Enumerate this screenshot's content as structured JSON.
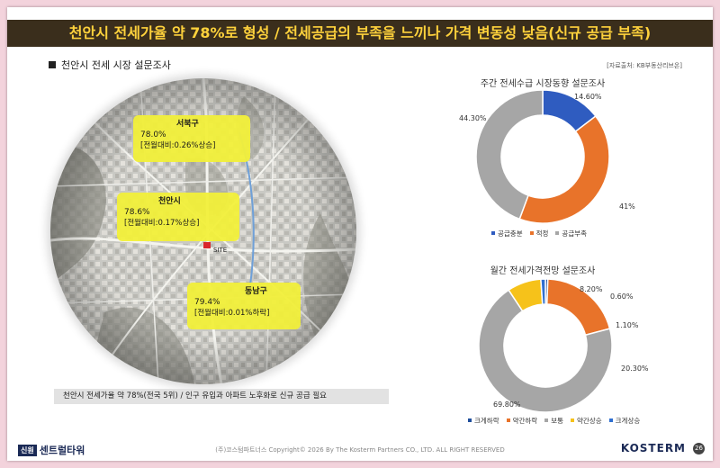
{
  "header": {
    "title": "천안시 전세가율 약 78%로 형성 / 전세공급의 부족을 느끼나 가격 변동성 낮음(신규 공급 부족)"
  },
  "section": {
    "title": "천안시 전세 시장 설문조사",
    "source": "[자료출처: KB부동산리브온]"
  },
  "map": {
    "callouts": [
      {
        "name": "서북구",
        "rate": "78.0%",
        "delta": "[전월대비:0.26%상승]"
      },
      {
        "name": "천안시",
        "rate": "78.6%",
        "delta": "[전월대비:0.17%상승]"
      },
      {
        "name": "동남구",
        "rate": "79.4%",
        "delta": "[전월대비:0.01%하락]"
      }
    ],
    "site_label": "SITE"
  },
  "footer_note": "천안시 전세가율 약 78%(전국 5위) / 인구 유입과 아파트 노후화로 신규 공급 필요",
  "chart_data": [
    {
      "type": "pie",
      "title": "주간 전세수급 시장동향 설문조사",
      "donut": true,
      "categories": [
        "공급충분",
        "적정",
        "공급부족"
      ],
      "values": [
        14.6,
        41,
        44.3
      ],
      "labels": [
        "14.60%",
        "41%",
        "44.30%"
      ],
      "colors": [
        "#2f5cc0",
        "#e8732a",
        "#a6a6a6"
      ],
      "legend_position": "bottom"
    },
    {
      "type": "pie",
      "title": "월간 전세가격전망 설문조사",
      "donut": true,
      "categories": [
        "크게하락",
        "약간하락",
        "보통",
        "약간상승",
        "크게상승"
      ],
      "values": [
        0.6,
        20.3,
        69.8,
        8.2,
        1.1
      ],
      "labels": [
        "0.60%",
        "20.30%",
        "69.80%",
        "8.20%",
        "1.10%"
      ],
      "colors": [
        "#1f4e9c",
        "#e8732a",
        "#a6a6a6",
        "#f6c21a",
        "#2f6fd0"
      ],
      "legend_position": "bottom"
    }
  ],
  "bottom": {
    "logo_box": "신원",
    "logo_text": "센트럴타워",
    "copyright": "(주)코스텀파트너스 Copyright© 2026 By The Kosterm Partners CO., LTD. ALL RIGHT RESERVED",
    "brand": "KOSTERM",
    "page_number": "26"
  }
}
